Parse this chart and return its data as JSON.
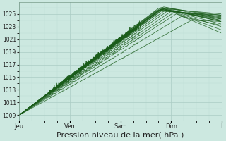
{
  "background_color": "#cce8e0",
  "grid_major_color": "#aaccc4",
  "grid_minor_color": "#bbddd6",
  "line_color": "#1a5c1a",
  "xlabel": "Pression niveau de la mer( hPa )",
  "xlabel_fontsize": 8,
  "yticks": [
    1009,
    1011,
    1013,
    1015,
    1017,
    1019,
    1021,
    1023,
    1025
  ],
  "xtick_labels": [
    "Jeu",
    "Ven",
    "Sam",
    "Dim",
    "L"
  ],
  "ylim": [
    1008.2,
    1026.8
  ],
  "xlim": [
    0.0,
    4.0
  ],
  "xtick_positions": [
    0,
    1,
    2,
    3,
    4
  ],
  "series_params": [
    [
      2.75,
      1025.9,
      3.98,
      1025.0,
      0.1
    ],
    [
      2.8,
      1026.0,
      3.98,
      1024.8,
      0.09
    ],
    [
      2.85,
      1026.1,
      3.98,
      1024.5,
      0.08
    ],
    [
      2.9,
      1026.0,
      3.98,
      1024.2,
      0.07
    ],
    [
      2.92,
      1025.8,
      3.98,
      1023.8,
      0.07
    ],
    [
      2.95,
      1025.6,
      3.98,
      1023.4,
      0.06
    ],
    [
      3.0,
      1025.4,
      3.98,
      1023.0,
      0.06
    ],
    [
      3.05,
      1025.2,
      3.98,
      1022.5,
      0.05
    ],
    [
      3.1,
      1025.0,
      3.98,
      1022.0,
      0.05
    ],
    [
      3.2,
      1024.6,
      3.98,
      1023.2,
      0.04
    ],
    [
      3.4,
      1024.0,
      3.98,
      1023.8,
      0.03
    ]
  ],
  "dense_series_params": [
    [
      2.7,
      1025.5,
      3.98,
      1024.8,
      0.18
    ],
    [
      2.75,
      1025.6,
      3.98,
      1024.6,
      0.17
    ],
    [
      2.78,
      1025.7,
      3.98,
      1024.4,
      0.16
    ],
    [
      2.8,
      1025.7,
      3.98,
      1024.2,
      0.15
    ],
    [
      2.82,
      1025.8,
      3.98,
      1024.0,
      0.14
    ],
    [
      2.85,
      1025.8,
      3.98,
      1023.8,
      0.13
    ]
  ]
}
